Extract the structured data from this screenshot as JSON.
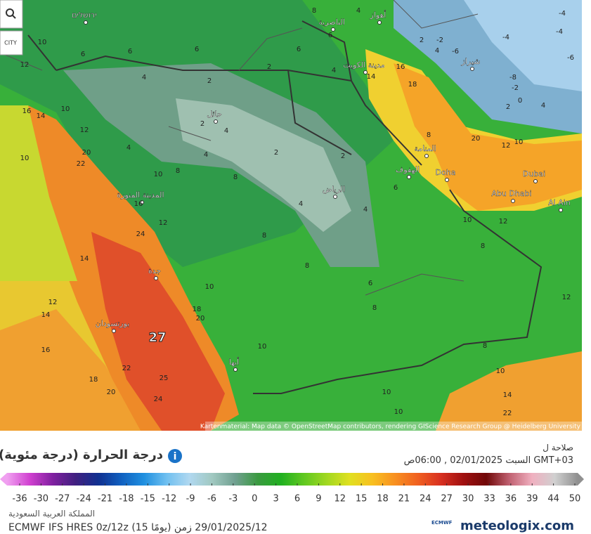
{
  "header": {
    "zoom": "CITY",
    "attribution": "Kartenmaterial: Map data © OpenStreetMap contributors, rendering GIScience Research Group @ Heidelberg University"
  },
  "map": {
    "cities": [
      "ירושלים",
      "الناصرية",
      "أهواز",
      "مدينة الكويت",
      "شيراز",
      "حائل",
      "المدينة المنورة",
      "الرياض",
      "الهفوف",
      "المنامة",
      "Doha",
      "Dubai",
      "Abu Dhabi",
      "Al Ain",
      "جدة",
      "بورتسودان",
      "أبها"
    ],
    "temperatures": [
      6,
      6,
      6,
      4,
      2,
      2,
      4,
      6,
      6,
      8,
      4,
      10,
      12,
      10,
      14,
      16,
      12,
      20,
      22,
      10,
      10,
      8,
      16,
      24,
      12,
      14,
      12,
      14,
      16,
      18,
      20,
      22,
      24,
      25,
      27,
      20,
      18,
      10,
      10,
      8,
      8,
      6,
      8,
      8,
      10,
      10,
      10,
      14,
      22,
      12,
      8,
      10,
      12,
      6,
      4,
      2,
      2,
      4,
      4,
      2,
      4,
      4,
      8,
      8,
      18,
      16,
      14,
      20,
      12,
      10,
      -2,
      -6,
      -4,
      -4,
      -6,
      -2,
      0,
      2,
      4,
      -8,
      2,
      4,
      -4
    ]
  },
  "legend": {
    "title": "درجة الحرارة (درجة مئوية)",
    "valid_label": "صلاحة ل",
    "valid_time": "GMT+03 السبت 02/01/2025 , 06:00ص",
    "ticks": [
      -36,
      -30,
      -27,
      -24,
      -21,
      -18,
      -15,
      -12,
      -9,
      -6,
      -3,
      0,
      3,
      6,
      9,
      12,
      15,
      18,
      21,
      24,
      27,
      30,
      33,
      36,
      39,
      44,
      50
    ],
    "colors": [
      "#f0a0f0",
      "#d040d0",
      "#8020a0",
      "#402080",
      "#103090",
      "#1060c0",
      "#2090e0",
      "#70c0f0",
      "#b0d8f0",
      "#a0c8c0",
      "#70a090",
      "#3a9a40",
      "#20b020",
      "#60c820",
      "#a0d820",
      "#e0e020",
      "#f8c020",
      "#f89020",
      "#f06020",
      "#d83020",
      "#a01010",
      "#700808",
      "#c06070",
      "#f0b0c0",
      "#d0d0d0",
      "#909090"
    ],
    "region": "المملكة العربية السعودية",
    "model": "ECMWF IFS HRES 0z/12z (15 يومًا) 29/01/2025/12 زمن",
    "brand": "meteologix.com",
    "brand_small": "ECMWF"
  }
}
